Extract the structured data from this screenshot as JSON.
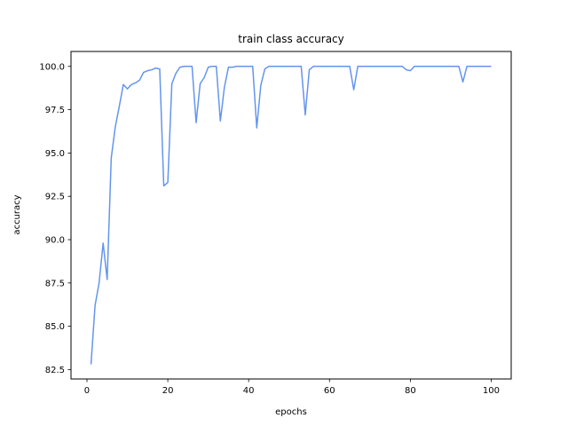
{
  "chart_data": {
    "type": "line",
    "title": "train class accuracy",
    "xlabel": "epochs",
    "ylabel": "accuracy",
    "xlim": [
      -3.95,
      104.95
    ],
    "ylim": [
      81.96,
      100.86
    ],
    "xticks": [
      0,
      20,
      40,
      60,
      80,
      100
    ],
    "xtick_labels": [
      "0",
      "20",
      "40",
      "60",
      "80",
      "100"
    ],
    "yticks": [
      82.5,
      85.0,
      87.5,
      90.0,
      92.5,
      95.0,
      97.5,
      100.0
    ],
    "ytick_labels": [
      "82.5",
      "85.0",
      "87.5",
      "90.0",
      "92.5",
      "95.0",
      "97.5",
      "100.0"
    ],
    "grid": false,
    "legend": "none",
    "series": [
      {
        "color": "#6495ed",
        "x": [
          1,
          2,
          3,
          4,
          5,
          6,
          7,
          8,
          9,
          10,
          11,
          12,
          13,
          14,
          15,
          16,
          17,
          18,
          19,
          20,
          21,
          22,
          23,
          24,
          25,
          26,
          27,
          28,
          29,
          30,
          31,
          32,
          33,
          34,
          35,
          36,
          37,
          38,
          39,
          40,
          41,
          42,
          43,
          44,
          45,
          46,
          47,
          48,
          49,
          50,
          51,
          52,
          53,
          54,
          55,
          56,
          57,
          58,
          59,
          60,
          61,
          62,
          63,
          64,
          65,
          66,
          67,
          68,
          69,
          70,
          71,
          72,
          73,
          74,
          75,
          76,
          77,
          78,
          79,
          80,
          81,
          82,
          83,
          84,
          85,
          86,
          87,
          88,
          89,
          90,
          91,
          92,
          93,
          94,
          95,
          96,
          97,
          98,
          99,
          100
        ],
        "values": [
          82.8,
          86.2,
          87.5,
          89.8,
          87.7,
          94.7,
          96.5,
          97.7,
          98.95,
          98.7,
          98.95,
          99.05,
          99.2,
          99.65,
          99.75,
          99.8,
          99.9,
          99.85,
          93.1,
          93.3,
          99.0,
          99.6,
          99.95,
          100,
          100,
          100,
          96.75,
          99.0,
          99.35,
          99.95,
          100,
          100,
          96.85,
          98.8,
          99.95,
          99.95,
          100,
          100,
          100,
          100,
          100,
          96.45,
          98.9,
          99.85,
          100,
          100,
          100,
          100,
          100,
          100,
          100,
          100,
          100,
          97.2,
          99.8,
          100,
          100,
          100,
          100,
          100,
          100,
          100,
          100,
          100,
          100,
          98.65,
          100,
          100,
          100,
          100,
          100,
          100,
          100,
          100,
          100,
          100,
          100,
          100,
          99.8,
          99.75,
          100,
          100,
          100,
          100,
          100,
          100,
          100,
          100,
          100,
          100,
          100,
          100,
          99.1,
          100,
          100,
          100,
          100,
          100,
          100,
          100
        ]
      }
    ]
  }
}
